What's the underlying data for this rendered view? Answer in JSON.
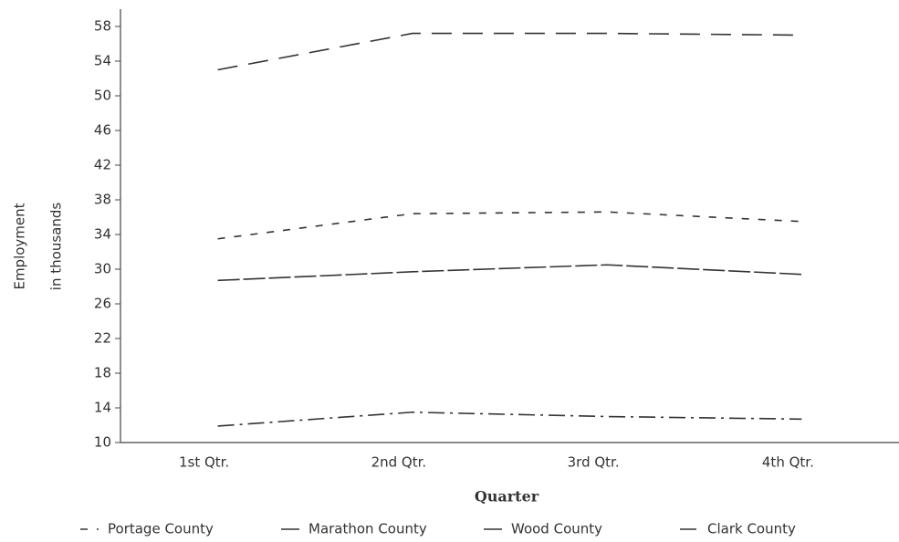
{
  "chart_data": {
    "type": "line",
    "x_label": "Quarter",
    "y_label": [
      "Employment",
      "in thousands"
    ],
    "categories": [
      "1st Qtr.",
      "2nd Qtr.",
      "3rd Qtr.",
      "4th Qtr."
    ],
    "series": [
      {
        "name": "Portage County",
        "color": "#333333",
        "line_style": "dashed",
        "values": [
          33.5,
          36.4,
          36.6,
          35.5
        ]
      },
      {
        "name": "Marathon County",
        "color": "#333333",
        "line_style": "long-dash",
        "values": [
          53,
          57.2,
          57.2,
          57
        ]
      },
      {
        "name": "Wood County",
        "color": "#333333",
        "line_style": "solid",
        "values": [
          28.7,
          29.7,
          30.5,
          29.4
        ]
      },
      {
        "name": "Clark County",
        "color": "#333333",
        "line_style": "dash-dot",
        "values": [
          11.9,
          13.5,
          13,
          12.7
        ]
      }
    ],
    "ylim": [
      10,
      60
    ],
    "yticks": [
      10,
      14,
      18,
      22,
      26,
      30,
      34,
      38,
      42,
      46,
      50,
      54,
      58
    ]
  }
}
